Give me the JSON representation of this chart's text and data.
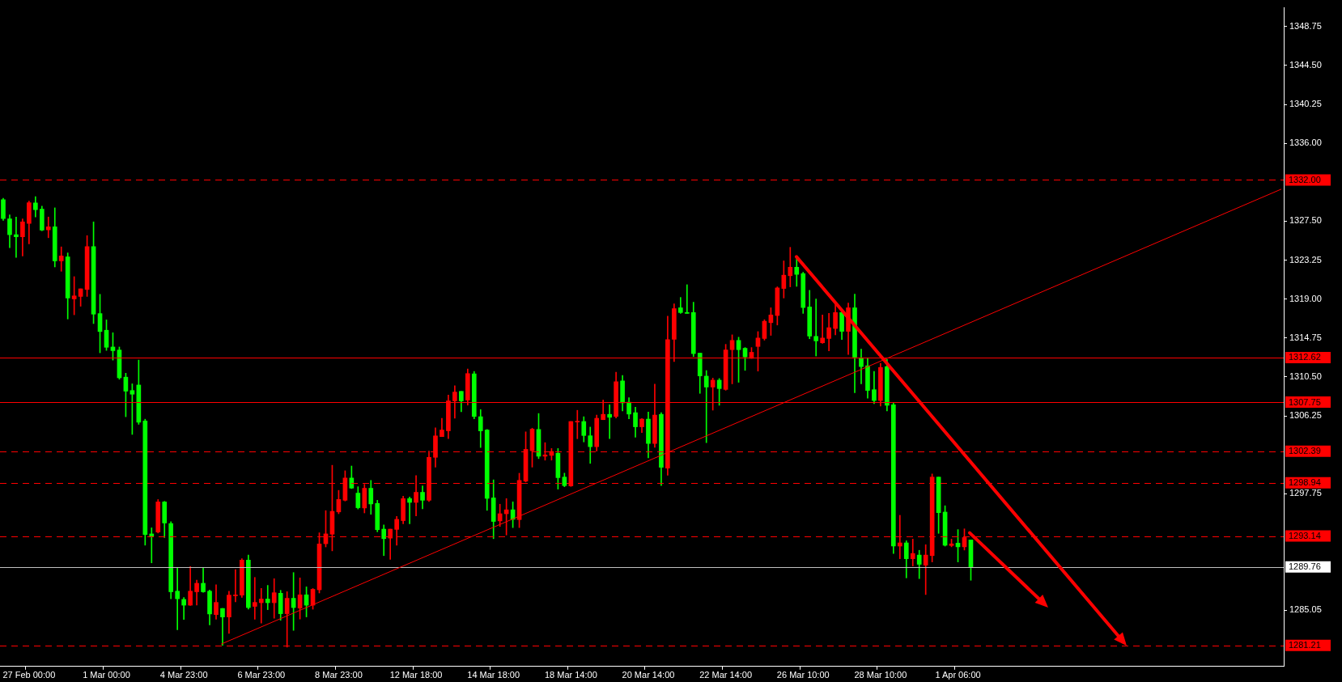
{
  "chart_data": {
    "type": "candlestick",
    "categories": [
      null,
      null,
      null,
      null,
      "27 Feb 00:00",
      null,
      null,
      null,
      null,
      null,
      null,
      null,
      null,
      null,
      null,
      null,
      "1 Mar 00:00",
      null,
      null,
      null,
      null,
      null,
      null,
      null,
      null,
      null,
      null,
      null,
      "4 Mar 23:00",
      null,
      null,
      null,
      null,
      null,
      null,
      null,
      null,
      null,
      null,
      null,
      "6 Mar 23:00",
      null,
      null,
      null,
      null,
      null,
      null,
      null,
      null,
      null,
      null,
      null,
      "8 Mar 23:00",
      null,
      null,
      null,
      null,
      null,
      null,
      null,
      null,
      null,
      null,
      null,
      "12 Mar 18:00",
      null,
      null,
      null,
      null,
      null,
      null,
      null,
      null,
      null,
      null,
      null,
      "14 Mar 18:00",
      null,
      null,
      null,
      null,
      null,
      null,
      null,
      null,
      null,
      null,
      null,
      "18 Mar 14:00",
      null,
      null,
      null,
      null,
      null,
      null,
      null,
      null,
      null,
      null,
      null,
      "20 Mar 14:00",
      null,
      null,
      null,
      null,
      null,
      null,
      null,
      null,
      null,
      null,
      null,
      "22 Mar 14:00",
      null,
      null,
      null,
      null,
      null,
      null,
      null,
      null,
      null,
      null,
      null,
      "26 Mar 10:00",
      null,
      null,
      null,
      null,
      null,
      null,
      null,
      null,
      null,
      null,
      null,
      "28 Mar 10:00",
      null,
      null,
      null,
      null,
      null,
      null,
      null,
      null,
      null,
      null,
      null,
      "1 Apr 06:00",
      null,
      null,
      null,
      null,
      null,
      null,
      null,
      null,
      null,
      null,
      null,
      null,
      null,
      null,
      null,
      null,
      null,
      null,
      null,
      null,
      null,
      null,
      null,
      null,
      null,
      null,
      null,
      null,
      null,
      null,
      null,
      null,
      null,
      null,
      null,
      null,
      null,
      null,
      null,
      null,
      null,
      null,
      null,
      null,
      null,
      null,
      null,
      null,
      null,
      null
    ],
    "ohlc": [
      [
        1329.85,
        1330.0,
        1327.6,
        1327.79
      ],
      [
        1327.76,
        1328.19,
        1324.6,
        1326.03
      ],
      [
        1326.03,
        1327.96,
        1323.54,
        1325.8
      ],
      [
        1325.8,
        1327.76,
        1323.71,
        1327.43
      ],
      [
        1327.26,
        1329.69,
        1325.03,
        1329.52
      ],
      [
        1329.49,
        1330.18,
        1327.96,
        1328.76
      ],
      [
        1328.82,
        1329.15,
        1326.46,
        1326.53
      ],
      [
        1326.56,
        1327.96,
        1325.7,
        1326.89
      ],
      [
        1326.89,
        1328.96,
        1322.51,
        1323.17
      ],
      [
        1323.17,
        1324.7,
        1322.04,
        1323.71
      ],
      [
        1323.61,
        1324.04,
        1316.83,
        1319.12
      ],
      [
        1319.02,
        1321.45,
        1317.29,
        1319.35
      ],
      [
        1319.29,
        1320.12,
        1318.22,
        1320.12
      ],
      [
        1320.05,
        1325.93,
        1319.29,
        1324.73
      ],
      [
        1324.73,
        1327.43,
        1316.33,
        1317.36
      ],
      [
        1317.42,
        1319.52,
        1313.14,
        1315.46
      ],
      [
        1315.6,
        1316.73,
        1313.4,
        1313.74
      ],
      [
        1313.77,
        1315.33,
        1312.34,
        1313.37
      ],
      [
        1313.44,
        1313.77,
        1310.25,
        1310.41
      ],
      [
        1310.48,
        1310.91,
        1306.16,
        1308.95
      ],
      [
        1309.02,
        1309.75,
        1304.23,
        1308.62
      ],
      [
        1309.62,
        1312.34,
        1305.33,
        1305.56
      ],
      [
        1305.69,
        1305.89,
        1292.14,
        1293.3
      ],
      [
        1293.37,
        1294.03,
        1290.21,
        1293.13
      ],
      [
        1293.57,
        1297.12,
        1293.47,
        1296.86
      ],
      [
        1296.86,
        1296.92,
        1292.97,
        1294.56
      ],
      [
        1294.5,
        1294.7,
        1286.29,
        1287.05
      ],
      [
        1287.12,
        1289.65,
        1282.9,
        1286.29
      ],
      [
        1286.22,
        1286.42,
        1284.03,
        1285.59
      ],
      [
        1285.59,
        1289.81,
        1285.56,
        1287.12
      ],
      [
        1287.05,
        1288.32,
        1285.59,
        1287.98
      ],
      [
        1287.98,
        1289.65,
        1286.99,
        1287.05
      ],
      [
        1287.12,
        1287.25,
        1283.43,
        1284.63
      ],
      [
        1284.56,
        1287.82,
        1284.06,
        1285.89
      ],
      [
        1285.23,
        1285.23,
        1281.2,
        1284.3
      ],
      [
        1284.3,
        1287.12,
        1282.5,
        1286.69
      ],
      [
        1286.62,
        1289.48,
        1285.96,
        1286.69
      ],
      [
        1286.69,
        1290.67,
        1286.45,
        1290.51
      ],
      [
        1290.51,
        1291.07,
        1285.16,
        1285.33
      ],
      [
        1285.46,
        1288.62,
        1284.06,
        1285.89
      ],
      [
        1285.86,
        1287.42,
        1283.63,
        1286.26
      ],
      [
        1286.26,
        1287.75,
        1285.1,
        1285.86
      ],
      [
        1285.86,
        1288.48,
        1284.16,
        1286.95
      ],
      [
        1286.89,
        1287.21,
        1283.94,
        1284.66
      ],
      [
        1284.66,
        1287.06,
        1281.0,
        1286.34
      ],
      [
        1286.34,
        1289.15,
        1282.84,
        1285.33
      ],
      [
        1285.27,
        1288.57,
        1284.08,
        1286.72
      ],
      [
        1286.72,
        1287.59,
        1284.31,
        1285.59
      ],
      [
        1285.59,
        1287.41,
        1285.15,
        1287.32
      ],
      [
        1287.27,
        1293.49,
        1286.92,
        1292.27
      ],
      [
        1292.3,
        1295.91,
        1291.95,
        1293.37
      ],
      [
        1293.34,
        1300.86,
        1291.52,
        1295.83
      ],
      [
        1295.77,
        1298.12,
        1295.57,
        1297.13
      ],
      [
        1297.04,
        1300.26,
        1296.96,
        1299.47
      ],
      [
        1299.47,
        1300.78,
        1298.32,
        1298.37
      ],
      [
        1297.82,
        1298.52,
        1296.09,
        1296.23
      ],
      [
        1296.2,
        1298.78,
        1295.66,
        1298.35
      ],
      [
        1298.35,
        1299.21,
        1295.51,
        1296.64
      ],
      [
        1296.7,
        1297.04,
        1293.6,
        1293.83
      ],
      [
        1293.89,
        1294.35,
        1291.0,
        1292.85
      ],
      [
        1292.91,
        1293.89,
        1290.59,
        1293.89
      ],
      [
        1293.86,
        1295.28,
        1292.13,
        1294.96
      ],
      [
        1294.82,
        1297.48,
        1294.47,
        1297.22
      ],
      [
        1297.22,
        1297.39,
        1294.47,
        1296.81
      ],
      [
        1296.81,
        1299.73,
        1295.34,
        1297.91
      ],
      [
        1297.91,
        1298.61,
        1296.12,
        1297.04
      ],
      [
        1297.04,
        1302.4,
        1296.9,
        1301.73
      ],
      [
        1301.73,
        1304.94,
        1300.66,
        1304.07
      ],
      [
        1303.99,
        1305.98,
        1303.99,
        1304.71
      ],
      [
        1304.62,
        1308.53,
        1303.76,
        1307.89
      ],
      [
        1307.89,
        1309.54,
        1306.01,
        1308.85
      ],
      [
        1308.93,
        1308.93,
        1306.71,
        1307.89
      ],
      [
        1307.98,
        1311.37,
        1307.43,
        1310.87
      ],
      [
        1310.84,
        1311.1,
        1305.93,
        1306.19
      ],
      [
        1306.16,
        1306.94,
        1302.8,
        1304.62
      ],
      [
        1304.71,
        1304.77,
        1295.94,
        1297.25
      ],
      [
        1297.3,
        1299.27,
        1292.85,
        1294.73
      ],
      [
        1294.79,
        1296.61,
        1294.18,
        1295.57
      ],
      [
        1295.57,
        1297.22,
        1293.25,
        1296.0
      ],
      [
        1296.0,
        1296.87,
        1294.06,
        1294.96
      ],
      [
        1294.93,
        1299.99,
        1294.06,
        1299.21
      ],
      [
        1299.13,
        1304.51,
        1299.04,
        1302.6
      ],
      [
        1302.45,
        1304.91,
        1300.66,
        1304.8
      ],
      [
        1304.77,
        1306.51,
        1301.59,
        1301.85
      ],
      [
        1301.85,
        1303.33,
        1301.42,
        1301.99
      ],
      [
        1301.94,
        1302.69,
        1301.42,
        1302.37
      ],
      [
        1302.17,
        1302.69,
        1298.26,
        1299.51
      ],
      [
        1299.57,
        1300.0,
        1298.52,
        1298.64
      ],
      [
        1298.61,
        1305.64,
        1298.55,
        1305.64
      ],
      [
        1305.58,
        1306.86,
        1303.76,
        1305.64
      ],
      [
        1305.64,
        1306.16,
        1303.41,
        1304.11
      ],
      [
        1304.08,
        1305.03,
        1301.07,
        1302.89
      ],
      [
        1302.89,
        1306.34,
        1302.4,
        1305.99
      ],
      [
        1305.84,
        1307.98,
        1305.84,
        1306.42
      ],
      [
        1306.42,
        1307.46,
        1303.76,
        1306.1
      ],
      [
        1306.19,
        1311.02,
        1306.02,
        1309.98
      ],
      [
        1310.07,
        1310.67,
        1306.8,
        1307.67
      ],
      [
        1307.75,
        1308.24,
        1305.93,
        1306.45
      ],
      [
        1306.6,
        1307.2,
        1303.93,
        1305.06
      ],
      [
        1305.06,
        1305.96,
        1304.43,
        1305.9
      ],
      [
        1305.9,
        1306.68,
        1301.68,
        1303.24
      ],
      [
        1303.24,
        1309.72,
        1302.81,
        1306.34
      ],
      [
        1306.42,
        1306.6,
        1298.64,
        1300.64
      ],
      [
        1300.55,
        1317.13,
        1299.77,
        1314.58
      ],
      [
        1314.61,
        1318.49,
        1312.18,
        1317.96
      ],
      [
        1318.05,
        1319.18,
        1317.44,
        1317.53
      ],
      [
        1317.53,
        1320.57,
        1317.44,
        1317.44
      ],
      [
        1317.53,
        1318.66,
        1312.73,
        1313.05
      ],
      [
        1313.1,
        1313.1,
        1308.71,
        1310.62
      ],
      [
        1310.59,
        1311.2,
        1303.33,
        1309.4
      ],
      [
        1309.4,
        1310.38,
        1306.88,
        1310.15
      ],
      [
        1310.15,
        1310.33,
        1307.41,
        1309.23
      ],
      [
        1309.14,
        1314.06,
        1309.05,
        1313.45
      ],
      [
        1313.48,
        1315.1,
        1309.75,
        1314.49
      ],
      [
        1314.49,
        1314.84,
        1309.92,
        1313.48
      ],
      [
        1313.63,
        1313.71,
        1311.22,
        1312.7
      ],
      [
        1312.53,
        1313.71,
        1312.53,
        1313.19
      ],
      [
        1313.83,
        1315.45,
        1311.14,
        1314.75
      ],
      [
        1314.7,
        1316.75,
        1314.52,
        1316.58
      ],
      [
        1316.43,
        1318.05,
        1315.04,
        1317.27
      ],
      [
        1317.21,
        1320.34,
        1316.17,
        1320.22
      ],
      [
        1320.16,
        1323.17,
        1319.12,
        1321.61
      ],
      [
        1321.55,
        1324.65,
        1320.34,
        1322.48
      ],
      [
        1322.48,
        1323.43,
        1320.39,
        1321.7
      ],
      [
        1321.78,
        1321.93,
        1317.44,
        1318.08
      ],
      [
        1318.14,
        1319.96,
        1314.67,
        1314.96
      ],
      [
        1314.93,
        1319.01,
        1312.79,
        1314.44
      ],
      [
        1314.23,
        1317.27,
        1314.17,
        1314.75
      ],
      [
        1314.7,
        1317.44,
        1313.36,
        1315.88
      ],
      [
        1315.79,
        1318.66,
        1315.1,
        1317.53
      ],
      [
        1317.53,
        1317.79,
        1314.58,
        1315.48
      ],
      [
        1315.48,
        1318.57,
        1312.96,
        1318.05
      ],
      [
        1318.05,
        1319.53,
        1308.79,
        1312.67
      ],
      [
        1312.58,
        1313.54,
        1309.75,
        1311.63
      ],
      [
        1311.72,
        1312.58,
        1308.19,
        1309.03
      ],
      [
        1309.11,
        1311.11,
        1307.58,
        1307.93
      ],
      [
        1307.93,
        1311.98,
        1307.32,
        1311.54
      ],
      [
        1311.63,
        1312.41,
        1306.8,
        1307.41
      ],
      [
        1307.46,
        1307.67,
        1291.23,
        1292.04
      ],
      [
        1292.04,
        1295.4,
        1290.66,
        1292.39
      ],
      [
        1292.39,
        1292.62,
        1288.57,
        1290.66
      ],
      [
        1290.66,
        1292.8,
        1289.87,
        1291.23
      ],
      [
        1291.06,
        1291.58,
        1288.49,
        1290.05
      ],
      [
        1289.96,
        1292.19,
        1286.75,
        1291.06
      ],
      [
        1291.0,
        1299.91,
        1290.31,
        1299.57
      ],
      [
        1299.57,
        1299.57,
        1293.43,
        1295.69
      ],
      [
        1295.75,
        1296.44,
        1292.04,
        1292.13
      ],
      [
        1292.1,
        1292.8,
        1291.96,
        1292.28
      ],
      [
        1292.36,
        1293.84,
        1290.31,
        1291.96
      ],
      [
        1291.96,
        1293.92,
        1291.61,
        1292.97
      ],
      [
        1292.71,
        1292.71,
        1288.31,
        1289.76
      ],
      null,
      null,
      null,
      null,
      null,
      null,
      null,
      null,
      null,
      null,
      null,
      null,
      null,
      null,
      null,
      null,
      null,
      null,
      null,
      null,
      null,
      null,
      null,
      null,
      null,
      null,
      null,
      null,
      null,
      null,
      null,
      null,
      null,
      null,
      null,
      null,
      null,
      null,
      null,
      null,
      null,
      null,
      null,
      null,
      null,
      null,
      null,
      null
    ],
    "colors": [
      "#00ff00",
      "#00ff00",
      "#00ff00",
      "#ff0000",
      "#ff0000",
      "#00ff00",
      "#00ff00",
      "#ff0000",
      "#00ff00",
      "#ff0000",
      "#00ff00",
      "#ff0000",
      "#ff0000",
      "#ff0000",
      "#00ff00",
      "#00ff00",
      "#00ff00",
      "#00ff00",
      "#00ff00",
      "#00ff00",
      "#00ff00",
      "#00ff00",
      "#00ff00",
      "#00ff00",
      "#ff0000",
      "#00ff00",
      "#00ff00",
      "#00ff00",
      "#00ff00",
      "#ff0000",
      "#ff0000",
      "#00ff00",
      "#00ff00",
      "#ff0000",
      "#00ff00",
      "#ff0000",
      "#ff0000",
      "#ff0000",
      "#00ff00",
      "#ff0000",
      "#ff0000",
      "#00ff00",
      "#ff0000",
      "#00ff00",
      "#ff0000",
      "#00ff00",
      "#ff0000",
      "#00ff00",
      "#ff0000",
      "#ff0000",
      "#ff0000",
      "#ff0000",
      "#ff0000",
      "#ff0000",
      "#00ff00",
      "#00ff00",
      "#ff0000",
      "#00ff00",
      "#00ff00",
      "#00ff00",
      "#ff0000",
      "#ff0000",
      "#ff0000",
      "#00ff00",
      "#ff0000",
      "#00ff00",
      "#ff0000",
      "#ff0000",
      "#ff0000",
      "#ff0000",
      "#ff0000",
      "#00ff00",
      "#ff0000",
      "#00ff00",
      "#00ff00",
      "#00ff00",
      "#00ff00",
      "#ff0000",
      "#ff0000",
      "#00ff00",
      "#ff0000",
      "#ff0000",
      "#ff0000",
      "#00ff00",
      "#ff0000",
      "#ff0000",
      "#00ff00",
      "#00ff00",
      "#ff0000",
      "#ff0000",
      "#00ff00",
      "#00ff00",
      "#ff0000",
      "#ff0000",
      "#00ff00",
      "#ff0000",
      "#00ff00",
      "#00ff00",
      "#00ff00",
      "#ff0000",
      "#00ff00",
      "#ff0000",
      "#00ff00",
      "#ff0000",
      "#ff0000",
      "#00ff00",
      "#00ff00",
      "#00ff00",
      "#00ff00",
      "#00ff00",
      "#ff0000",
      "#00ff00",
      "#ff0000",
      "#ff0000",
      "#00ff00",
      "#00ff00",
      "#ff0000",
      "#ff0000",
      "#ff0000",
      "#ff0000",
      "#ff0000",
      "#ff0000",
      "#ff0000",
      "#00ff00",
      "#00ff00",
      "#00ff00",
      "#00ff00",
      "#ff0000",
      "#ff0000",
      "#ff0000",
      "#00ff00",
      "#ff0000",
      "#00ff00",
      "#00ff00",
      "#00ff00",
      "#00ff00",
      "#ff0000",
      "#00ff00",
      "#00ff00",
      "#ff0000",
      "#00ff00",
      "#ff0000",
      "#00ff00",
      "#ff0000",
      "#ff0000",
      "#00ff00",
      "#00ff00",
      "#ff0000",
      "#00ff00",
      "#ff0000",
      "#00ff00",
      null,
      null,
      null,
      null,
      null,
      null,
      null,
      null,
      null,
      null,
      null,
      null,
      null,
      null,
      null,
      null,
      null,
      null,
      null,
      null,
      null,
      null,
      null,
      null,
      null,
      null,
      null,
      null,
      null,
      null,
      null,
      null,
      null,
      null,
      null,
      null,
      null,
      null,
      null,
      null,
      null,
      null,
      null,
      null,
      null,
      null,
      null,
      null
    ],
    "ylim": [
      1278.9,
      1350.8
    ],
    "yticks": [
      {
        "value": 1348.75,
        "label": "1348.75"
      },
      {
        "value": 1344.5,
        "label": "1344.50"
      },
      {
        "value": 1340.25,
        "label": "1340.25"
      },
      {
        "value": 1336,
        "label": "1336.00"
      },
      {
        "value": 1327.5,
        "label": "1327.50"
      },
      {
        "value": 1323.25,
        "label": "1323.25"
      },
      {
        "value": 1319,
        "label": "1319.00"
      },
      {
        "value": 1314.75,
        "label": "1314.75"
      },
      {
        "value": 1310.5,
        "label": "1310.50"
      },
      {
        "value": 1306.25,
        "label": "1306.25"
      },
      {
        "value": 1297.75,
        "label": "1297.75"
      },
      {
        "value": 1285.05,
        "label": "1285.05"
      }
    ],
    "ref_lines": [
      {
        "axis": "y",
        "value": 1332.0,
        "label": "1332.00",
        "color": "#ff0000",
        "line_style": "dashed"
      },
      {
        "axis": "y",
        "value": 1312.62,
        "label": "1312.62",
        "color": "#ff0000",
        "line_style": "solid"
      },
      {
        "axis": "y",
        "value": 1307.75,
        "label": "1307.75",
        "color": "#ff0000",
        "line_style": "solid"
      },
      {
        "axis": "y",
        "value": 1302.39,
        "label": "1302.39",
        "color": "#ff0000",
        "line_style": "dashed"
      },
      {
        "axis": "y",
        "value": 1298.94,
        "label": "1298.94",
        "color": "#ff0000",
        "line_style": "dashed"
      },
      {
        "axis": "y",
        "value": 1293.14,
        "label": "1293.14",
        "color": "#ff0000",
        "line_style": "dashed"
      },
      {
        "axis": "y",
        "value": 1289.76,
        "label": "1289.76",
        "color": "#c0c0c0",
        "line_style": "solid"
      },
      {
        "axis": "y",
        "value": 1281.21,
        "label": "1281.21",
        "color": "#ff0000",
        "line_style": "dashed"
      }
    ],
    "grid": false,
    "legend": false
  }
}
